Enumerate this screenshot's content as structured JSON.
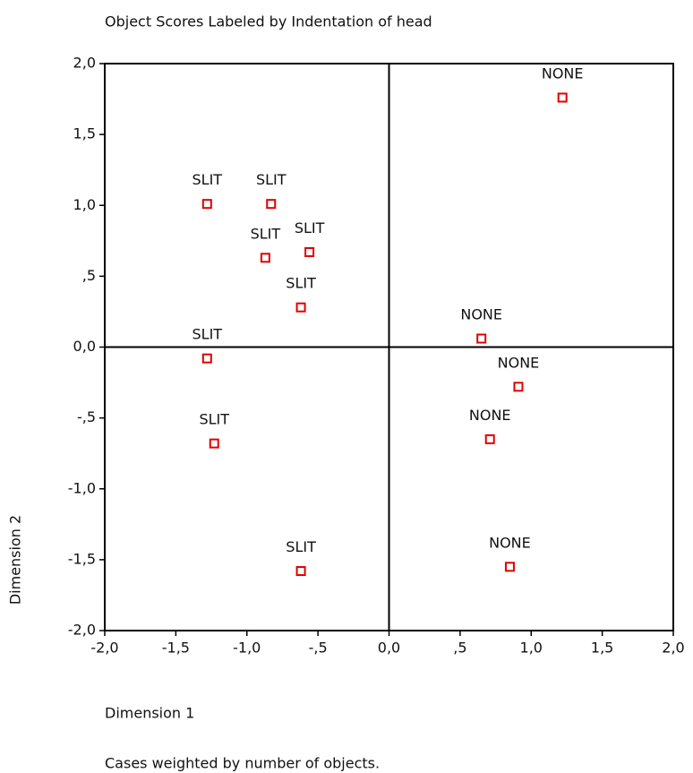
{
  "chart_data": {
    "type": "scatter",
    "title": "Object Scores Labeled by Indentation of head",
    "x_label": "Dimension 1",
    "y_label": "Dimension 2",
    "footnote": "Cases weighted by number of objects.",
    "series": [
      {
        "color": "#e00000",
        "x": [
          1.22,
          -1.28,
          -0.83,
          -0.87,
          -0.56,
          -0.62,
          0.65,
          -1.28,
          0.91,
          -1.23,
          0.71,
          -0.62,
          0.85
        ],
        "values": [
          1.76,
          1.01,
          1.01,
          0.63,
          0.67,
          0.28,
          0.06,
          -0.08,
          -0.28,
          -0.68,
          -0.65,
          -1.58,
          -1.55
        ],
        "labels": [
          "NONE",
          "SLIT",
          "SLIT",
          "SLIT",
          "SLIT",
          "SLIT",
          "NONE",
          "SLIT",
          "NONE",
          "SLIT",
          "NONE",
          "SLIT",
          "NONE"
        ]
      }
    ],
    "xlim": [
      -2,
      2
    ],
    "ylim": [
      -2,
      2
    ],
    "xticks": [
      {
        "value": -2,
        "label": "-2,0"
      },
      {
        "value": -1.5,
        "label": "-1,5"
      },
      {
        "value": -1,
        "label": "-1,0"
      },
      {
        "value": -0.5,
        "label": "-,5"
      },
      {
        "value": 0,
        "label": "0,0"
      },
      {
        "value": 0.5,
        "label": ",5"
      },
      {
        "value": 1,
        "label": "1,0"
      },
      {
        "value": 1.5,
        "label": "1,5"
      },
      {
        "value": 2,
        "label": "2,0"
      }
    ],
    "yticks": [
      {
        "value": -2,
        "label": "-2,0"
      },
      {
        "value": -1.5,
        "label": "-1,5"
      },
      {
        "value": -1,
        "label": "-1,0"
      },
      {
        "value": -0.5,
        "label": "-,5"
      },
      {
        "value": 0,
        "label": "0,0"
      },
      {
        "value": 0.5,
        "label": ",5"
      },
      {
        "value": 1,
        "label": "1,0"
      },
      {
        "value": 1.5,
        "label": "1,5"
      },
      {
        "value": 2,
        "label": "2,0"
      }
    ]
  }
}
